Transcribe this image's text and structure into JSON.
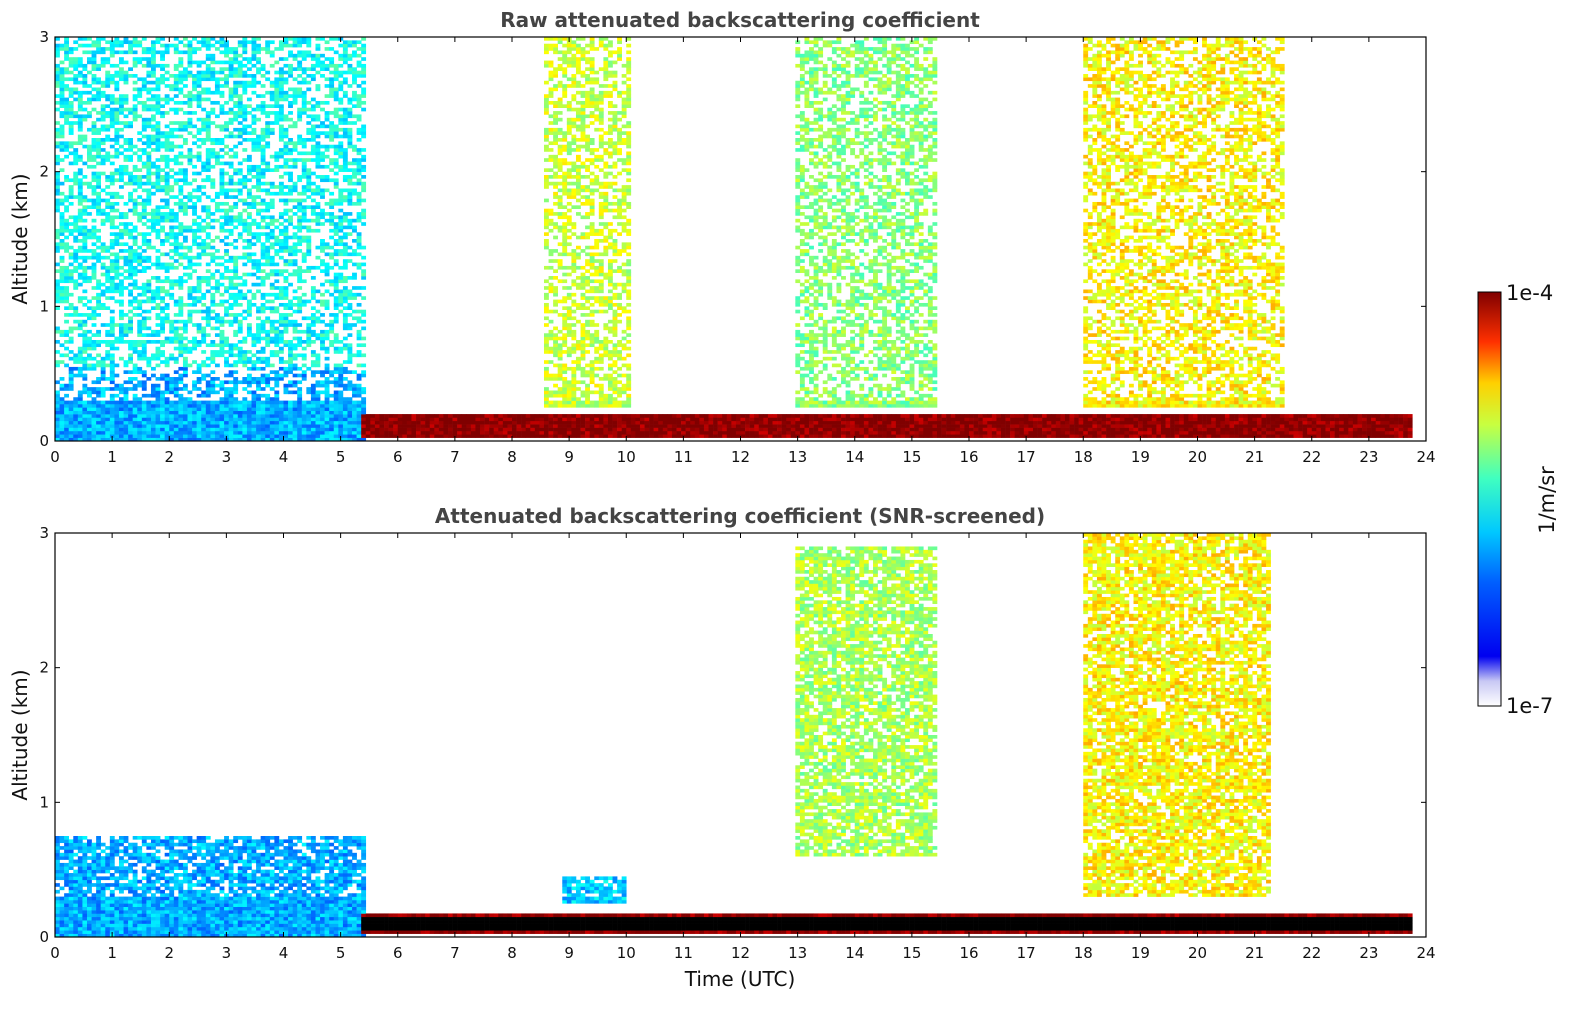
{
  "figure": {
    "colorbar": {
      "max_label": "1e-4",
      "min_label": "1e-7",
      "unit_label": "1/m/sr",
      "scale": "log",
      "colormap": "jet (white at lowest value)"
    },
    "x_axis_label": "Time (UTC)"
  },
  "chart_data": [
    {
      "type": "heatmap",
      "title": "Raw attenuated backscattering coefficient",
      "xlabel": "",
      "ylabel": "Altitude (km)",
      "xlim": [
        0,
        24
      ],
      "ylim": [
        0,
        3
      ],
      "x_ticks": [
        "0",
        "1",
        "2",
        "3",
        "4",
        "5",
        "6",
        "7",
        "8",
        "9",
        "10",
        "11",
        "12",
        "13",
        "14",
        "15",
        "16",
        "17",
        "18",
        "19",
        "20",
        "21",
        "22",
        "23",
        "24"
      ],
      "y_ticks": [
        "0",
        "1",
        "2",
        "3"
      ],
      "data_end_hour": 23.75,
      "value_scale": "log10 (1e-7 to 1e-4 1/m/sr)",
      "features": [
        {
          "description": "low noisy layer, blue",
          "x": [
            0,
            5.4
          ],
          "y": [
            0,
            0.55
          ],
          "log10_value": -6.3
        },
        {
          "description": "dense scattered noise above layer",
          "x": [
            0,
            5.4
          ],
          "y": [
            0.55,
            3
          ],
          "log10_value": -6.0
        },
        {
          "description": "strong near-surface layer, dark red",
          "x": [
            5.4,
            23.75
          ],
          "y": [
            0.03,
            0.21
          ],
          "log10_value": -4.0
        },
        {
          "description": "noise plume",
          "x": [
            8.6,
            10.1
          ],
          "y": [
            0.25,
            3
          ],
          "log10_value": -5.4
        },
        {
          "description": "noise plume",
          "x": [
            13.0,
            15.4
          ],
          "y": [
            0.25,
            3
          ],
          "log10_value": -5.6
        },
        {
          "description": "broad noisy column",
          "x": [
            18.0,
            21.5
          ],
          "y": [
            0.25,
            3
          ],
          "log10_value": -5.2
        }
      ]
    },
    {
      "type": "heatmap",
      "title": "Attenuated backscattering coefficient (SNR-screened)",
      "xlabel": "Time (UTC)",
      "ylabel": "Altitude (km)",
      "xlim": [
        0,
        24
      ],
      "ylim": [
        0,
        3
      ],
      "x_ticks": [
        "0",
        "1",
        "2",
        "3",
        "4",
        "5",
        "6",
        "7",
        "8",
        "9",
        "10",
        "11",
        "12",
        "13",
        "14",
        "15",
        "16",
        "17",
        "18",
        "19",
        "20",
        "21",
        "22",
        "23",
        "24"
      ],
      "y_ticks": [
        "0",
        "1",
        "2",
        "3"
      ],
      "data_end_hour": 23.75,
      "value_scale": "log10 (1e-7 to 1e-4 1/m/sr)",
      "features": [
        {
          "description": "boundary layer, blue",
          "x": [
            0,
            5.4
          ],
          "y": [
            0,
            0.75
          ],
          "log10_value": -6.3
        },
        {
          "description": "near-surface layer, black/dark red core",
          "x": [
            5.4,
            23.75
          ],
          "y": [
            0.03,
            0.18
          ],
          "log10_value": -4.0
        },
        {
          "description": "small plume",
          "x": [
            8.9,
            10.0
          ],
          "y": [
            0.25,
            0.45
          ],
          "log10_value": -6.2
        },
        {
          "description": "sparse speckle",
          "x": [
            13.0,
            15.4
          ],
          "y": [
            0.6,
            2.9
          ],
          "log10_value": -5.5
        },
        {
          "description": "dense aerosol column",
          "x": [
            18.0,
            21.3
          ],
          "y": [
            0.3,
            3
          ],
          "log10_value": -5.2
        }
      ]
    }
  ]
}
